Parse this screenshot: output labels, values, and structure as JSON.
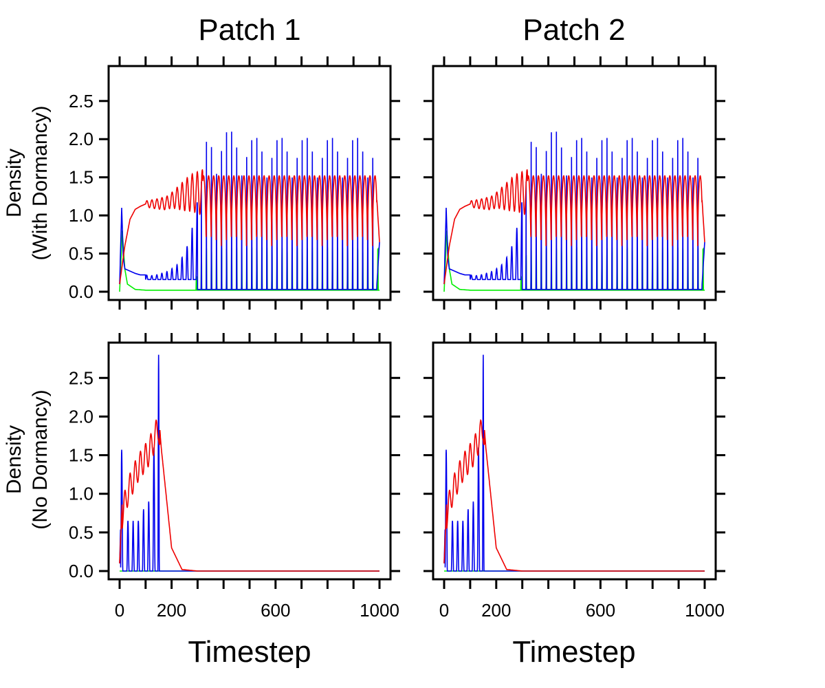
{
  "figure": {
    "column_titles": [
      "Patch 1",
      "Patch 2"
    ],
    "row_labels": [
      {
        "line1": "Density",
        "line2": "(With Dormancy)"
      },
      {
        "line1": "Density",
        "line2": "(No Dormancy)"
      }
    ],
    "xlabel": "Timestep"
  },
  "chart_data": [
    {
      "type": "line",
      "title": "Patch 1",
      "row": "With Dormancy",
      "xlim": [
        0,
        1000
      ],
      "ylim": [
        0,
        2.85
      ],
      "xticks": [
        0,
        200,
        600,
        1000
      ],
      "yticks": [
        0.0,
        0.5,
        1.0,
        1.5,
        2.0,
        2.5
      ],
      "ytick_labels": [
        "0.0",
        "0.5",
        "1.0",
        "1.5",
        "2.0",
        "2.5"
      ],
      "xtick_labels": [
        "0",
        "200",
        "600",
        "1000"
      ],
      "colors": {
        "blue": "#0000ee",
        "red": "#ee0000",
        "green": "#00ee00"
      },
      "series": [
        {
          "color": "blue",
          "x": [
            0,
            8,
            20,
            40,
            60,
            80,
            100,
            120,
            140,
            160,
            180,
            200,
            220,
            240,
            260,
            280,
            300,
            320,
            340,
            360,
            400,
            500,
            600,
            700,
            800,
            900,
            990,
            1000
          ],
          "y": [
            0.1,
            1.1,
            0.3,
            0.28,
            0.24,
            0.22,
            0.22,
            0.21,
            0.22,
            0.24,
            0.26,
            0.3,
            0.35,
            0.45,
            0.6,
            0.85,
            1.2,
            1.58,
            2.15,
            2.07,
            2.15,
            2.03,
            2.03,
            2.03,
            2.03,
            2.03,
            2.03,
            0.65
          ],
          "pattern": "oscillating pulses from ~100, peaks listed, troughs near 0.05"
        },
        {
          "color": "red",
          "x": [
            0,
            20,
            40,
            60,
            80,
            100,
            140,
            180,
            200,
            240,
            280,
            300,
            320,
            340,
            360,
            400,
            500,
            600,
            700,
            800,
            900,
            990,
            1000
          ],
          "y": [
            0.1,
            0.6,
            0.95,
            1.08,
            1.12,
            1.15,
            1.18,
            1.2,
            1.28,
            1.4,
            1.5,
            1.55,
            1.58,
            1.55,
            1.52,
            1.52,
            1.52,
            1.52,
            1.52,
            1.52,
            1.52,
            1.52,
            0.65
          ],
          "pattern": "oscillating, troughs ~0.6 after 320"
        },
        {
          "color": "green",
          "x": [
            0,
            10,
            30,
            60,
            100,
            200,
            280,
            300,
            320,
            360,
            400,
            500,
            600,
            700,
            800,
            900,
            1000
          ],
          "y": [
            0.0,
            0.8,
            0.1,
            0.03,
            0.02,
            0.02,
            0.05,
            0.25,
            0.58,
            0.58,
            0.58,
            0.58,
            0.58,
            0.58,
            0.58,
            0.58,
            0.02
          ],
          "pattern": "pulses from ~290 reaching ~0.58"
        }
      ]
    },
    {
      "type": "line",
      "title": "Patch 2",
      "row": "With Dormancy",
      "xlim": [
        0,
        1000
      ],
      "ylim": [
        0,
        2.85
      ],
      "xticks": [
        0,
        200,
        600,
        1000
      ],
      "yticks": [
        0.0,
        0.5,
        1.0,
        1.5,
        2.0,
        2.5
      ],
      "note": "same dynamics as Patch 1"
    },
    {
      "type": "line",
      "title": "Patch 1",
      "row": "No Dormancy",
      "xlim": [
        0,
        1000
      ],
      "ylim": [
        0,
        2.85
      ],
      "xticks": [
        0,
        200,
        600,
        1000
      ],
      "yticks": [
        0.0,
        0.5,
        1.0,
        1.5,
        2.0,
        2.5
      ],
      "series": [
        {
          "color": "blue",
          "peaks_x": [
            8,
            32,
            52,
            72,
            92,
            112,
            132,
            150
          ],
          "peaks_y": [
            1.57,
            0.65,
            0.65,
            0.65,
            0.8,
            0.9,
            1.6,
            2.8
          ],
          "after": 0
        },
        {
          "color": "red",
          "x": [
            0,
            10,
            30,
            50,
            70,
            90,
            110,
            130,
            150,
            160,
            200,
            240,
            300,
            1000
          ],
          "y": [
            0.1,
            0.9,
            1.18,
            1.35,
            1.5,
            1.6,
            1.7,
            1.85,
            2.05,
            1.6,
            0.3,
            0.02,
            0.0,
            0.0
          ]
        },
        {
          "color": "green",
          "x": [
            0,
            1000
          ],
          "y": [
            0.0,
            0.0
          ]
        }
      ]
    },
    {
      "type": "line",
      "title": "Patch 2",
      "row": "No Dormancy",
      "xlim": [
        0,
        1000
      ],
      "ylim": [
        0,
        2.85
      ],
      "xticks": [
        0,
        200,
        600,
        1000
      ],
      "yticks": [
        0.0,
        0.5,
        1.0,
        1.5,
        2.0,
        2.5
      ],
      "note": "same dynamics as Patch 1"
    }
  ]
}
